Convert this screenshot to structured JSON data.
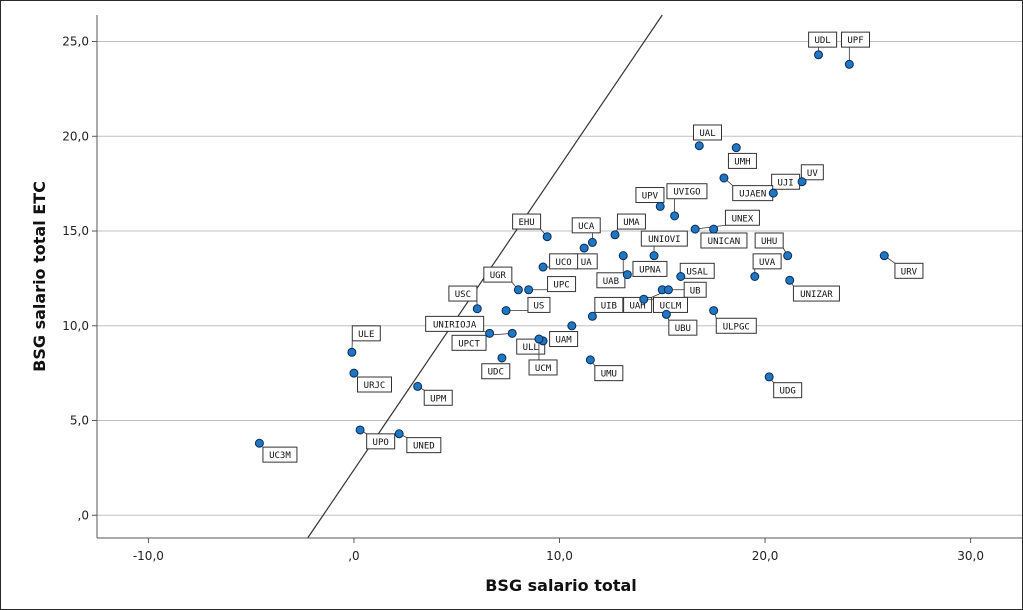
{
  "chart_data": {
    "type": "scatter",
    "xlabel": "BSG salario total",
    "ylabel": "BSG salario total ETC",
    "xlim": [
      -12.5,
      32.5
    ],
    "ylim": [
      -1.2,
      26.4
    ],
    "x_ticks": [
      -10,
      0,
      10,
      20,
      30
    ],
    "x_tick_labels": [
      "-10,0",
      ",0",
      "10,0",
      "20,0",
      "30,0"
    ],
    "y_ticks": [
      0,
      5,
      10,
      15,
      20,
      25
    ],
    "y_tick_labels": [
      ",0",
      "5,0",
      "10,0",
      "15,0",
      "20,0",
      "25,0"
    ],
    "grid": "horizontal",
    "fit_line": {
      "slope": 1.6,
      "intercept": 2.4
    },
    "colors": {
      "point": "#1f77c4",
      "point_edge": "#0a2a55",
      "grid": "#c0c0c0",
      "line": "#333333"
    },
    "points": [
      {
        "label": "UDL",
        "x": 22.6,
        "y": 24.3,
        "lx": 22.8,
        "ly": 25.1
      },
      {
        "label": "UPF",
        "x": 24.1,
        "y": 23.8,
        "lx": 24.4,
        "ly": 25.1
      },
      {
        "label": "UAL",
        "x": 16.8,
        "y": 19.5,
        "lx": 17.2,
        "ly": 20.2
      },
      {
        "label": "UMH",
        "x": 18.6,
        "y": 19.4,
        "lx": 18.9,
        "ly": 18.7
      },
      {
        "label": "UV",
        "x": 21.8,
        "y": 17.6,
        "lx": 22.3,
        "ly": 18.1
      },
      {
        "label": "UJI",
        "x": 20.4,
        "y": 17.0,
        "lx": 21.0,
        "ly": 17.6
      },
      {
        "label": "UJAEN",
        "x": 18.0,
        "y": 17.8,
        "lx": 19.4,
        "ly": 17.0
      },
      {
        "label": "UPV",
        "x": 14.9,
        "y": 16.3,
        "lx": 14.4,
        "ly": 16.9
      },
      {
        "label": "UVIGO",
        "x": 15.6,
        "y": 15.8,
        "lx": 16.2,
        "ly": 17.1
      },
      {
        "label": "UNEX",
        "x": 16.6,
        "y": 15.1,
        "lx": 18.9,
        "ly": 15.7
      },
      {
        "label": "UMA",
        "x": 12.7,
        "y": 14.8,
        "lx": 13.5,
        "ly": 15.5
      },
      {
        "label": "EHU",
        "x": 9.4,
        "y": 14.7,
        "lx": 8.4,
        "ly": 15.5
      },
      {
        "label": "UCA",
        "x": 11.6,
        "y": 14.4,
        "lx": 11.3,
        "ly": 15.3
      },
      {
        "label": "UNIOVI",
        "x": 14.6,
        "y": 13.7,
        "lx": 15.1,
        "ly": 14.6
      },
      {
        "label": "UNICAN",
        "x": 17.5,
        "y": 15.1,
        "lx": 18.0,
        "ly": 14.5
      },
      {
        "label": "UHU",
        "x": 21.1,
        "y": 13.7,
        "lx": 20.2,
        "ly": 14.5
      },
      {
        "label": "URV",
        "x": 25.8,
        "y": 13.7,
        "lx": 27.0,
        "ly": 12.9
      },
      {
        "label": "UA",
        "x": 11.2,
        "y": 14.1,
        "lx": 11.3,
        "ly": 13.4
      },
      {
        "label": "UCO",
        "x": 9.2,
        "y": 13.1,
        "lx": 10.2,
        "ly": 13.4
      },
      {
        "label": "UVA",
        "x": 19.5,
        "y": 12.6,
        "lx": 20.1,
        "ly": 13.4
      },
      {
        "label": "UPNA",
        "x": 13.3,
        "y": 12.7,
        "lx": 14.4,
        "ly": 13.0
      },
      {
        "label": "UNIZAR",
        "x": 21.2,
        "y": 12.4,
        "lx": 22.5,
        "ly": 11.7
      },
      {
        "label": "UPC",
        "x": 8.5,
        "y": 11.9,
        "lx": 10.1,
        "ly": 12.2
      },
      {
        "label": "USAL",
        "x": 15.9,
        "y": 12.6,
        "lx": 16.7,
        "ly": 12.9
      },
      {
        "label": "UGR",
        "x": 8.0,
        "y": 11.9,
        "lx": 7.0,
        "ly": 12.7
      },
      {
        "label": "UAB",
        "x": 13.1,
        "y": 13.7,
        "lx": 12.5,
        "ly": 12.4
      },
      {
        "label": "UB",
        "x": 15.0,
        "y": 11.9,
        "lx": 16.6,
        "ly": 11.9
      },
      {
        "label": "USC",
        "x": 6.0,
        "y": 10.9,
        "lx": 5.3,
        "ly": 11.7
      },
      {
        "label": "US",
        "x": 7.4,
        "y": 10.8,
        "lx": 9.0,
        "ly": 11.1
      },
      {
        "label": "UIB",
        "x": 11.6,
        "y": 10.5,
        "lx": 12.4,
        "ly": 11.1
      },
      {
        "label": "UAH",
        "x": 15.3,
        "y": 11.9,
        "lx": 13.8,
        "ly": 11.1
      },
      {
        "label": "UCLM",
        "x": 14.1,
        "y": 11.4,
        "lx": 15.4,
        "ly": 11.1
      },
      {
        "label": "UNIRIOJA",
        "x": 6.6,
        "y": 9.6,
        "lx": 4.9,
        "ly": 10.1
      },
      {
        "label": "UBU",
        "x": 15.2,
        "y": 10.6,
        "lx": 16.0,
        "ly": 9.9
      },
      {
        "label": "ULPGC",
        "x": 17.5,
        "y": 10.8,
        "lx": 18.6,
        "ly": 10.0
      },
      {
        "label": "ULE",
        "x": -0.1,
        "y": 8.6,
        "lx": 0.6,
        "ly": 9.6
      },
      {
        "label": "UPCT",
        "x": 7.7,
        "y": 9.6,
        "lx": 5.6,
        "ly": 9.1
      },
      {
        "label": "UAM",
        "x": 10.6,
        "y": 10.0,
        "lx": 10.2,
        "ly": 9.3
      },
      {
        "label": "ULL",
        "x": 9.2,
        "y": 9.2,
        "lx": 8.6,
        "ly": 8.9
      },
      {
        "label": "UDC",
        "x": 7.2,
        "y": 8.3,
        "lx": 6.9,
        "ly": 7.6
      },
      {
        "label": "UCM",
        "x": 9.0,
        "y": 9.3,
        "lx": 9.2,
        "ly": 7.8
      },
      {
        "label": "UMU",
        "x": 11.5,
        "y": 8.2,
        "lx": 12.4,
        "ly": 7.5
      },
      {
        "label": "URJC",
        "x": 0.0,
        "y": 7.5,
        "lx": 1.0,
        "ly": 6.9
      },
      {
        "label": "UPM",
        "x": 3.1,
        "y": 6.8,
        "lx": 4.1,
        "ly": 6.2
      },
      {
        "label": "UDG",
        "x": 20.2,
        "y": 7.3,
        "lx": 21.1,
        "ly": 6.6
      },
      {
        "label": "UPO",
        "x": 0.3,
        "y": 4.5,
        "lx": 1.3,
        "ly": 3.9
      },
      {
        "label": "UNED",
        "x": 2.2,
        "y": 4.3,
        "lx": 3.4,
        "ly": 3.7
      },
      {
        "label": "UC3M",
        "x": -4.6,
        "y": 3.8,
        "lx": -3.6,
        "ly": 3.2
      }
    ]
  }
}
